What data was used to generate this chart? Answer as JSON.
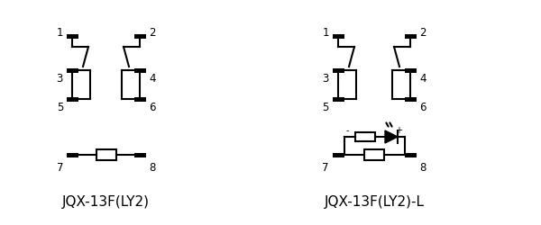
{
  "bg_color": "#ffffff",
  "line_color": "#000000",
  "lw": 1.5,
  "label1": "JQX-13F(LY2)",
  "label2": "JQX-13F(LY2)-L",
  "label_fontsize": 11,
  "figsize": [
    6.0,
    2.5
  ],
  "dpi": 100
}
